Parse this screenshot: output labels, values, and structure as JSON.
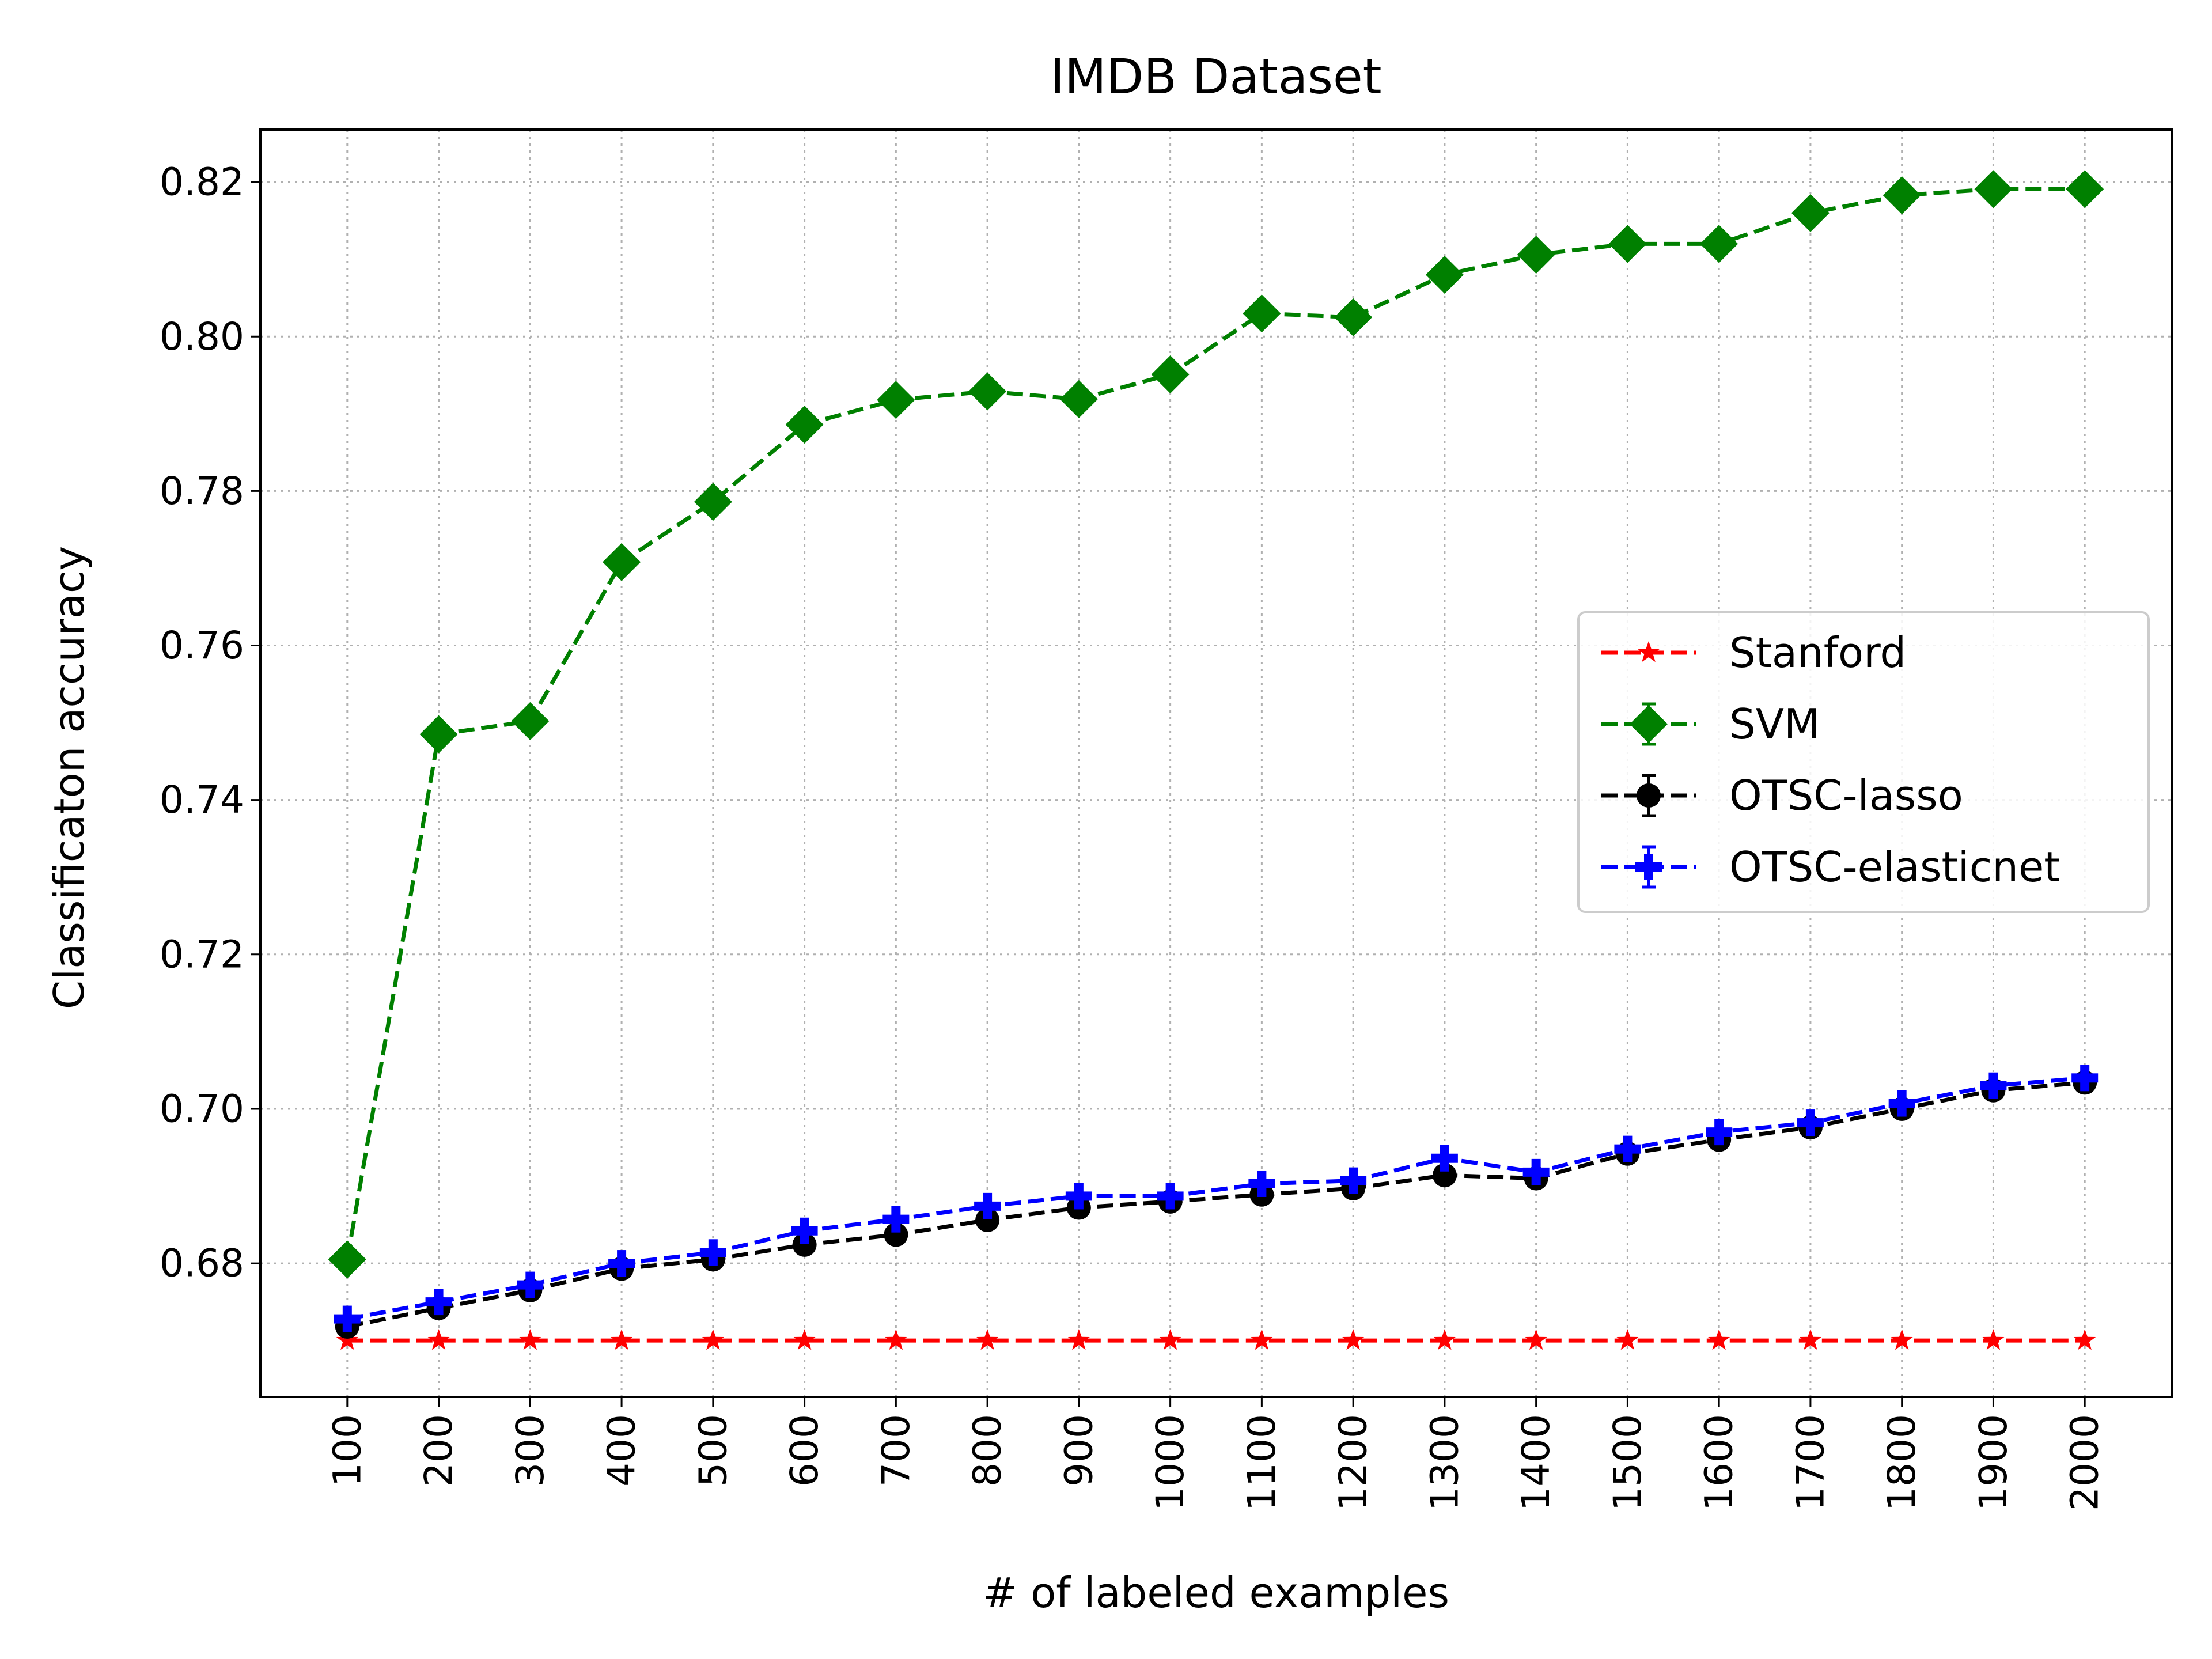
{
  "chart_data": {
    "type": "line",
    "title": "IMDB Dataset",
    "xlabel": "# of labeled examples",
    "ylabel": "Classificaton accuracy",
    "x": [
      100,
      200,
      300,
      400,
      500,
      600,
      700,
      800,
      900,
      1000,
      1100,
      1200,
      1300,
      1400,
      1500,
      1600,
      1700,
      1800,
      1900,
      2000
    ],
    "x_tick_labels": [
      "100",
      "200",
      "300",
      "400",
      "500",
      "600",
      "700",
      "800",
      "900",
      "1000",
      "1100",
      "1200",
      "1300",
      "1400",
      "1500",
      "1600",
      "1700",
      "1800",
      "1900",
      "2000"
    ],
    "y_ticks": [
      0.68,
      0.7,
      0.72,
      0.74,
      0.76,
      0.78,
      0.8,
      0.82
    ],
    "y_tick_labels": [
      "0.68",
      "0.70",
      "0.72",
      "0.74",
      "0.76",
      "0.78",
      "0.80",
      "0.82"
    ],
    "ylim": [
      0.6627,
      0.8268
    ],
    "xlim": [
      5,
      2095
    ],
    "grid": true,
    "grid_style": "dotted",
    "x_tick_rotation": "vertical",
    "legend_position": "center-right",
    "series": [
      {
        "name": "Stanford",
        "color": "#ff0000",
        "marker": "star",
        "linestyle": "dashed",
        "values": [
          0.67,
          0.67,
          0.67,
          0.67,
          0.67,
          0.67,
          0.67,
          0.67,
          0.67,
          0.67,
          0.67,
          0.67,
          0.67,
          0.67,
          0.67,
          0.67,
          0.67,
          0.67,
          0.67,
          0.67
        ]
      },
      {
        "name": "SVM",
        "color": "#008000",
        "marker": "diamond",
        "linestyle": "dashed",
        "values": [
          0.6805,
          0.7485,
          0.7502,
          0.7708,
          0.7786,
          0.7886,
          0.7918,
          0.7929,
          0.7919,
          0.7951,
          0.803,
          0.8025,
          0.808,
          0.8106,
          0.812,
          0.812,
          0.816,
          0.8183,
          0.8191,
          0.8191
        ]
      },
      {
        "name": "OTSC-lasso",
        "color": "#000000",
        "marker": "circle",
        "linestyle": "dashed",
        "values": [
          0.6718,
          0.6742,
          0.6765,
          0.6793,
          0.6805,
          0.6824,
          0.6837,
          0.6856,
          0.6872,
          0.688,
          0.6889,
          0.6897,
          0.6914,
          0.691,
          0.6942,
          0.696,
          0.6976,
          0.7,
          0.7024,
          0.7034
        ]
      },
      {
        "name": "OTSC-elasticnet",
        "color": "#0000ff",
        "marker": "plus",
        "linestyle": "dashed",
        "values": [
          0.6728,
          0.675,
          0.6772,
          0.68,
          0.6814,
          0.6842,
          0.6857,
          0.6874,
          0.6887,
          0.6887,
          0.6903,
          0.6907,
          0.6936,
          0.6918,
          0.6948,
          0.697,
          0.6982,
          0.7007,
          0.703,
          0.704
        ]
      }
    ]
  }
}
